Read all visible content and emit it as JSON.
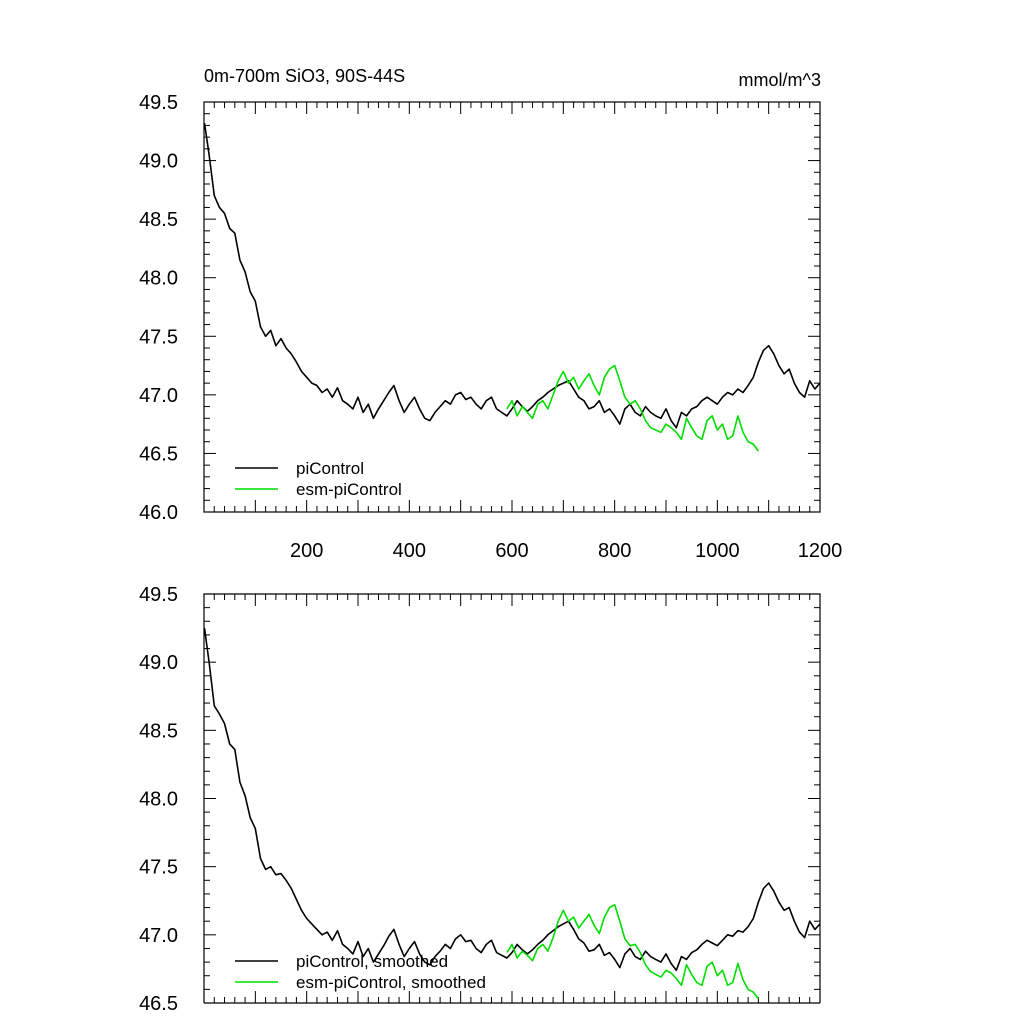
{
  "figure": {
    "title_left": "0m-700m SiO3, 90S-44S",
    "title_right": "mmol/m^3"
  },
  "chart_data": [
    {
      "type": "line",
      "xlim": [
        0,
        1200
      ],
      "ylim": [
        46.0,
        49.5
      ],
      "xticks": [
        200,
        400,
        600,
        800,
        1000,
        1200
      ],
      "xtick_labels": [
        "200",
        "400",
        "600",
        "800",
        "1000",
        "1200"
      ],
      "yticks": [
        46.0,
        46.5,
        47.0,
        47.5,
        48.0,
        48.5,
        49.0,
        49.5
      ],
      "ytick_labels": [
        "46.0",
        "46.5",
        "47.0",
        "47.5",
        "48.0",
        "48.5",
        "49.0",
        "49.5"
      ],
      "legend_position": "bottom-left",
      "series": [
        {
          "name": "piControl",
          "color": "#000000",
          "x": [
            1,
            10,
            20,
            30,
            40,
            50,
            60,
            70,
            80,
            90,
            100,
            110,
            120,
            130,
            140,
            150,
            160,
            170,
            180,
            190,
            200,
            210,
            220,
            230,
            240,
            250,
            260,
            270,
            280,
            290,
            300,
            310,
            320,
            330,
            340,
            350,
            360,
            370,
            380,
            390,
            400,
            410,
            420,
            430,
            440,
            450,
            460,
            470,
            480,
            490,
            500,
            510,
            520,
            530,
            540,
            550,
            560,
            570,
            580,
            590,
            600,
            610,
            620,
            630,
            640,
            650,
            660,
            670,
            680,
            690,
            700,
            710,
            720,
            730,
            740,
            750,
            760,
            770,
            780,
            790,
            800,
            810,
            820,
            830,
            840,
            850,
            860,
            870,
            880,
            890,
            900,
            910,
            920,
            930,
            940,
            950,
            960,
            970,
            980,
            990,
            1000,
            1010,
            1020,
            1030,
            1040,
            1050,
            1060,
            1070,
            1080,
            1090,
            1100,
            1110,
            1120,
            1130,
            1140,
            1150,
            1160,
            1170,
            1180,
            1190,
            1200
          ],
          "values": [
            49.32,
            49.05,
            48.7,
            48.6,
            48.55,
            48.42,
            48.38,
            48.15,
            48.05,
            47.88,
            47.8,
            47.58,
            47.5,
            47.55,
            47.42,
            47.48,
            47.4,
            47.35,
            47.28,
            47.2,
            47.15,
            47.1,
            47.08,
            47.02,
            47.05,
            46.98,
            47.06,
            46.95,
            46.92,
            46.88,
            46.98,
            46.85,
            46.92,
            46.8,
            46.88,
            46.95,
            47.02,
            47.08,
            46.95,
            46.85,
            46.92,
            46.98,
            46.88,
            46.8,
            46.78,
            46.85,
            46.9,
            46.95,
            46.92,
            47.0,
            47.02,
            46.96,
            46.98,
            46.92,
            46.88,
            46.95,
            46.98,
            46.88,
            46.85,
            46.82,
            46.88,
            46.95,
            46.9,
            46.86,
            46.9,
            46.95,
            46.98,
            47.02,
            47.05,
            47.08,
            47.1,
            47.12,
            47.05,
            46.98,
            46.95,
            46.88,
            46.9,
            46.95,
            46.85,
            46.88,
            46.82,
            46.75,
            46.88,
            46.92,
            46.85,
            46.82,
            46.9,
            46.85,
            46.82,
            46.8,
            46.88,
            46.78,
            46.72,
            46.85,
            46.82,
            46.88,
            46.9,
            46.95,
            46.98,
            46.95,
            46.92,
            46.98,
            47.02,
            47.0,
            47.05,
            47.02,
            47.08,
            47.15,
            47.28,
            47.38,
            47.42,
            47.35,
            47.25,
            47.18,
            47.22,
            47.1,
            47.02,
            46.98,
            47.12,
            47.05,
            47.1
          ]
        },
        {
          "name": "esm-piControl",
          "color": "#00dd00",
          "x": [
            590,
            600,
            610,
            620,
            630,
            640,
            650,
            660,
            670,
            680,
            690,
            700,
            710,
            720,
            730,
            740,
            750,
            760,
            770,
            780,
            790,
            800,
            810,
            820,
            830,
            840,
            850,
            860,
            870,
            880,
            890,
            900,
            910,
            920,
            930,
            940,
            950,
            960,
            970,
            980,
            990,
            1000,
            1010,
            1020,
            1030,
            1040,
            1050,
            1060,
            1070,
            1080
          ],
          "values": [
            46.88,
            46.95,
            46.82,
            46.9,
            46.85,
            46.8,
            46.92,
            46.95,
            46.88,
            47.0,
            47.12,
            47.2,
            47.1,
            47.15,
            47.05,
            47.12,
            47.18,
            47.08,
            47.0,
            47.15,
            47.22,
            47.25,
            47.12,
            46.98,
            46.92,
            46.95,
            46.88,
            46.78,
            46.72,
            46.7,
            46.68,
            46.75,
            46.72,
            46.68,
            46.62,
            46.8,
            46.72,
            46.65,
            46.62,
            46.78,
            46.82,
            46.7,
            46.75,
            46.62,
            46.65,
            46.82,
            46.68,
            46.6,
            46.58,
            46.52
          ]
        }
      ]
    },
    {
      "type": "line",
      "xlim": [
        0,
        1200
      ],
      "ylim": [
        46.5,
        49.5
      ],
      "yticks": [
        46.5,
        47.0,
        47.5,
        48.0,
        48.5,
        49.0,
        49.5
      ],
      "ytick_labels": [
        "46.5",
        "47.0",
        "47.5",
        "48.0",
        "48.5",
        "49.0",
        "49.5"
      ],
      "legend_position": "bottom-left",
      "series": [
        {
          "name": "piControl, smoothed",
          "color": "#000000",
          "x": [
            1,
            10,
            20,
            30,
            40,
            50,
            60,
            70,
            80,
            90,
            100,
            110,
            120,
            130,
            140,
            150,
            160,
            170,
            180,
            190,
            200,
            210,
            220,
            230,
            240,
            250,
            260,
            270,
            280,
            290,
            300,
            310,
            320,
            330,
            340,
            350,
            360,
            370,
            380,
            390,
            400,
            410,
            420,
            430,
            440,
            450,
            460,
            470,
            480,
            490,
            500,
            510,
            520,
            530,
            540,
            550,
            560,
            570,
            580,
            590,
            600,
            610,
            620,
            630,
            640,
            650,
            660,
            670,
            680,
            690,
            700,
            710,
            720,
            730,
            740,
            750,
            760,
            770,
            780,
            790,
            800,
            810,
            820,
            830,
            840,
            850,
            860,
            870,
            880,
            890,
            900,
            910,
            920,
            930,
            940,
            950,
            960,
            970,
            980,
            990,
            1000,
            1010,
            1020,
            1030,
            1040,
            1050,
            1060,
            1070,
            1080,
            1090,
            1100,
            1110,
            1120,
            1130,
            1140,
            1150,
            1160,
            1170,
            1180,
            1190,
            1200
          ],
          "values": [
            49.25,
            49.0,
            48.68,
            48.62,
            48.55,
            48.4,
            48.36,
            48.12,
            48.02,
            47.86,
            47.78,
            47.56,
            47.48,
            47.5,
            47.44,
            47.45,
            47.4,
            47.34,
            47.26,
            47.18,
            47.12,
            47.08,
            47.04,
            47.0,
            47.02,
            46.96,
            47.03,
            46.93,
            46.9,
            46.86,
            46.95,
            46.84,
            46.9,
            46.8,
            46.86,
            46.92,
            46.99,
            47.04,
            46.93,
            46.84,
            46.9,
            46.95,
            46.86,
            46.8,
            46.78,
            46.84,
            46.88,
            46.93,
            46.9,
            46.97,
            47.0,
            46.95,
            46.96,
            46.9,
            46.87,
            46.93,
            46.96,
            46.87,
            46.85,
            46.83,
            46.87,
            46.93,
            46.89,
            46.86,
            46.89,
            46.93,
            46.96,
            47.0,
            47.03,
            47.06,
            47.08,
            47.1,
            47.04,
            46.97,
            46.94,
            46.88,
            46.89,
            46.93,
            46.85,
            46.87,
            46.82,
            46.76,
            46.86,
            46.9,
            46.84,
            46.82,
            46.88,
            46.84,
            46.82,
            46.8,
            46.86,
            46.79,
            46.74,
            46.84,
            46.82,
            46.87,
            46.89,
            46.93,
            46.96,
            46.94,
            46.92,
            46.96,
            47.0,
            46.99,
            47.03,
            47.02,
            47.06,
            47.12,
            47.24,
            47.34,
            47.38,
            47.32,
            47.24,
            47.18,
            47.2,
            47.1,
            47.02,
            46.98,
            47.1,
            47.04,
            47.08
          ]
        },
        {
          "name": "esm-piControl, smoothed",
          "color": "#00dd00",
          "x": [
            590,
            600,
            610,
            620,
            630,
            640,
            650,
            660,
            670,
            680,
            690,
            700,
            710,
            720,
            730,
            740,
            750,
            760,
            770,
            780,
            790,
            800,
            810,
            820,
            830,
            840,
            850,
            860,
            870,
            880,
            890,
            900,
            910,
            920,
            930,
            940,
            950,
            960,
            970,
            980,
            990,
            1000,
            1010,
            1020,
            1030,
            1040,
            1050,
            1060,
            1070,
            1080
          ],
          "values": [
            46.87,
            46.93,
            46.83,
            46.88,
            46.85,
            46.81,
            46.9,
            46.93,
            46.88,
            46.98,
            47.1,
            47.18,
            47.1,
            47.13,
            47.05,
            47.1,
            47.15,
            47.07,
            47.01,
            47.13,
            47.2,
            47.22,
            47.1,
            46.97,
            46.92,
            46.93,
            46.87,
            46.78,
            46.73,
            46.71,
            46.69,
            46.74,
            46.72,
            46.68,
            46.63,
            46.78,
            46.71,
            46.65,
            46.63,
            46.77,
            46.8,
            46.7,
            46.74,
            46.63,
            46.65,
            46.79,
            46.67,
            46.6,
            46.58,
            46.53
          ]
        }
      ]
    }
  ]
}
